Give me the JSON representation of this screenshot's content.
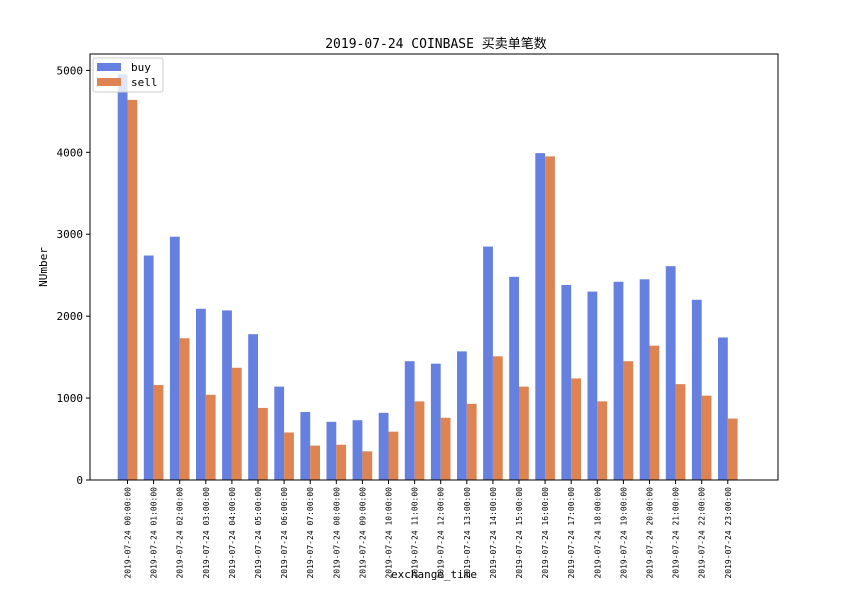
{
  "chart_data": {
    "type": "bar",
    "title": "2019-07-24 COINBASE 买卖单笔数",
    "xlabel": "exchange_time",
    "ylabel": "NUmber",
    "ylim": [
      0,
      5200
    ],
    "yticks": [
      0,
      1000,
      2000,
      3000,
      4000,
      5000
    ],
    "legend_position": "top-left",
    "grid": false,
    "categories": [
      "2019-07-24 00:00:00",
      "2019-07-24 01:00:00",
      "2019-07-24 02:00:00",
      "2019-07-24 03:00:00",
      "2019-07-24 04:00:00",
      "2019-07-24 05:00:00",
      "2019-07-24 06:00:00",
      "2019-07-24 07:00:00",
      "2019-07-24 08:00:00",
      "2019-07-24 09:00:00",
      "2019-07-24 10:00:00",
      "2019-07-24 11:00:00",
      "2019-07-24 12:00:00",
      "2019-07-24 13:00:00",
      "2019-07-24 14:00:00",
      "2019-07-24 15:00:00",
      "2019-07-24 16:00:00",
      "2019-07-24 17:00:00",
      "2019-07-24 18:00:00",
      "2019-07-24 19:00:00",
      "2019-07-24 20:00:00",
      "2019-07-24 21:00:00",
      "2019-07-24 22:00:00",
      "2019-07-24 23:00:00"
    ],
    "series": [
      {
        "name": "buy",
        "color": "#6680e0",
        "values": [
          4950,
          2740,
          2970,
          2090,
          2070,
          1780,
          1140,
          830,
          710,
          730,
          820,
          1450,
          1420,
          1570,
          2850,
          2480,
          3990,
          2380,
          2300,
          2420,
          2450,
          2610,
          2200,
          1740
        ]
      },
      {
        "name": "sell",
        "color": "#dd8452",
        "values": [
          4640,
          1160,
          1730,
          1040,
          1370,
          880,
          580,
          420,
          430,
          350,
          590,
          960,
          760,
          930,
          1510,
          1140,
          3950,
          1240,
          960,
          1450,
          1640,
          1170,
          1030,
          750
        ]
      }
    ]
  }
}
